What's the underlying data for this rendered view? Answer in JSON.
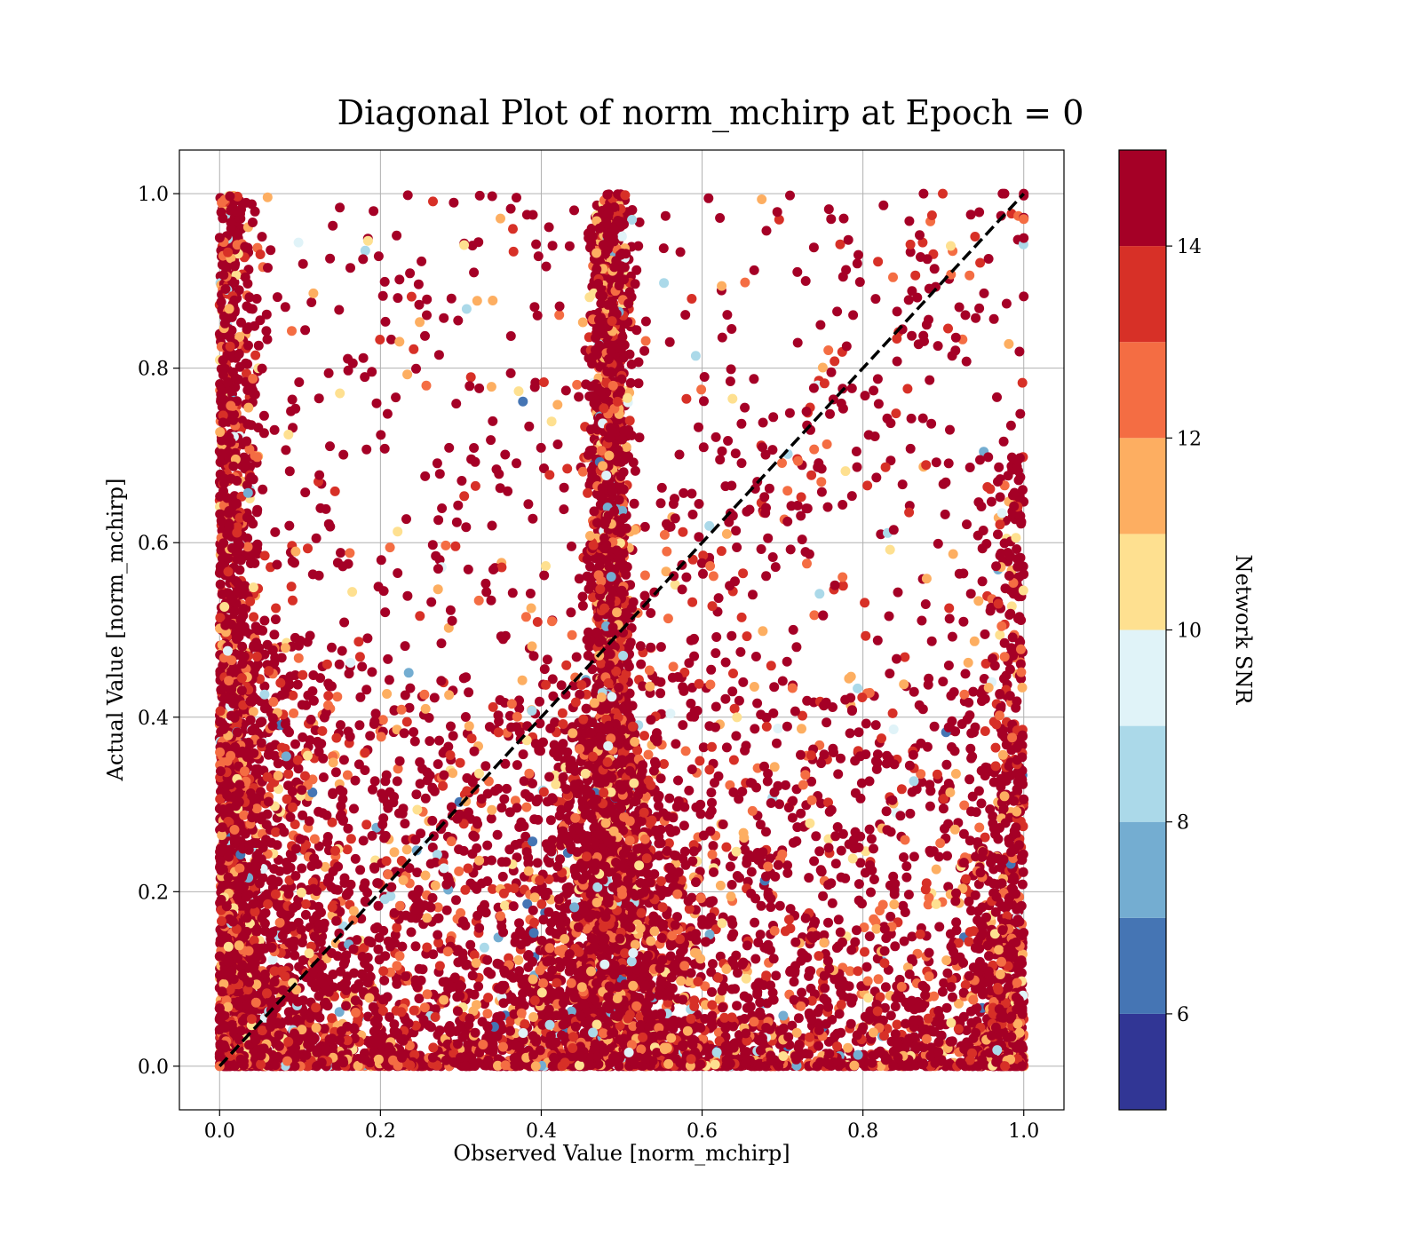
{
  "chart_data": {
    "type": "scatter",
    "title": "Diagonal Plot of norm_mchirp at Epoch = 0",
    "xlabel": "Observed Value [norm_mchirp]",
    "ylabel": "Actual Value [norm_mchirp]",
    "xlim": [
      -0.05,
      1.05
    ],
    "ylim": [
      -0.05,
      1.05
    ],
    "x_ticks": [
      "0.0",
      "0.2",
      "0.4",
      "0.6",
      "0.8",
      "1.0"
    ],
    "y_ticks": [
      "0.0",
      "0.2",
      "0.4",
      "0.6",
      "0.8",
      "1.0"
    ],
    "grid": true,
    "reference_line": {
      "style": "dashed",
      "color": "#000000",
      "from": [
        0,
        0
      ],
      "to": [
        1,
        1
      ]
    },
    "colorbar": {
      "label": "Network SNR",
      "range": [
        5,
        15
      ],
      "ticks": [
        "6",
        "8",
        "10",
        "12",
        "14"
      ],
      "tick_values": [
        6,
        8,
        10,
        12,
        14
      ],
      "boundaries": [
        5,
        6,
        7,
        8,
        9,
        10,
        11,
        12,
        13,
        14,
        15
      ],
      "colors": [
        "#313695",
        "#4575b4",
        "#74add1",
        "#abd9e9",
        "#e0f3f8",
        "#fee090",
        "#fdae61",
        "#f46d43",
        "#d73027",
        "#a50026"
      ]
    },
    "colormap": "RdYlBu_r (discrete, 10 levels)",
    "points_description": "Dense point clouds: vertical column near x≈0.48–0.50 spanning y 0–1, clusters along x≈0 and x≈1 edges, dense band for y<0.35; most points colored for SNR ≥ 14."
  }
}
